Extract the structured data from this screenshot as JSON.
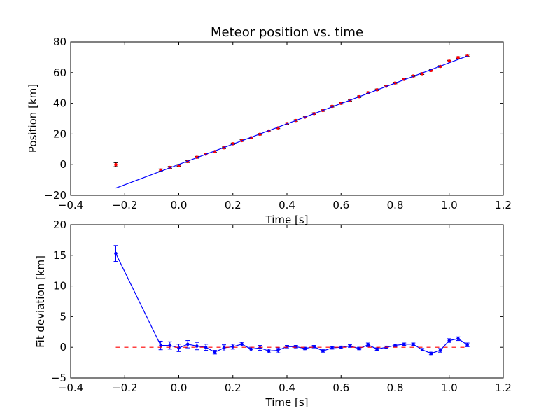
{
  "chart_data": [
    {
      "type": "scatter",
      "title": "Meteor position vs. time",
      "xlabel": "Time [s]",
      "ylabel": "Position [km]",
      "xlim": [
        -0.4,
        1.2
      ],
      "ylim": [
        -20,
        80
      ],
      "xticks": [
        -0.4,
        -0.2,
        0.0,
        0.2,
        0.4,
        0.6,
        0.8,
        1.0,
        1.2
      ],
      "xtick_labels": [
        "−0.4",
        "−0.2",
        "0.0",
        "0.2",
        "0.4",
        "0.6",
        "0.8",
        "1.0",
        "1.2"
      ],
      "yticks": [
        -20,
        0,
        20,
        40,
        60,
        80
      ],
      "ytick_labels": [
        "−20",
        "0",
        "20",
        "40",
        "60",
        "80"
      ],
      "grid": false,
      "series": [
        {
          "kind": "points_with_errorbars",
          "color": "#ff0000",
          "x": [
            -0.233,
            -0.067,
            -0.033,
            0.0,
            0.033,
            0.067,
            0.1,
            0.133,
            0.167,
            0.2,
            0.233,
            0.267,
            0.3,
            0.333,
            0.367,
            0.4,
            0.433,
            0.467,
            0.5,
            0.533,
            0.567,
            0.6,
            0.633,
            0.667,
            0.7,
            0.733,
            0.767,
            0.8,
            0.833,
            0.867,
            0.9,
            0.933,
            0.967,
            1.0,
            1.033,
            1.067
          ],
          "y": [
            0.0,
            -3.5,
            -1.8,
            -0.5,
            2.0,
            4.8,
            6.8,
            8.5,
            11.0,
            13.6,
            15.7,
            17.6,
            19.8,
            22.0,
            24.0,
            26.8,
            28.8,
            31.0,
            33.3,
            35.3,
            38.0,
            40.0,
            42.0,
            44.3,
            46.9,
            48.8,
            51.1,
            53.2,
            55.6,
            57.8,
            59.3,
            61.4,
            64.0,
            67.5,
            69.8,
            71.2
          ],
          "yerr": [
            1.3,
            0.7,
            0.6,
            0.6,
            0.6,
            0.6,
            0.5,
            0.5,
            0.5,
            0.5,
            0.5,
            0.5,
            0.5,
            0.5,
            0.5,
            0.5,
            0.5,
            0.5,
            0.5,
            0.5,
            0.5,
            0.5,
            0.5,
            0.5,
            0.5,
            0.5,
            0.5,
            0.5,
            0.5,
            0.5,
            0.5,
            0.5,
            0.5,
            0.5,
            0.5,
            0.5
          ]
        },
        {
          "kind": "fit_line",
          "color": "#0000ff",
          "x": [
            -0.233,
            1.067
          ],
          "y": [
            -15.3,
            70.8
          ]
        }
      ]
    },
    {
      "type": "line",
      "title": "",
      "xlabel": "Time [s]",
      "ylabel": "Fit deviation [km]",
      "xlim": [
        -0.4,
        1.2
      ],
      "ylim": [
        -5,
        20
      ],
      "xticks": [
        -0.4,
        -0.2,
        0.0,
        0.2,
        0.4,
        0.6,
        0.8,
        1.0,
        1.2
      ],
      "xtick_labels": [
        "−0.4",
        "−0.2",
        "0.0",
        "0.2",
        "0.4",
        "0.6",
        "0.8",
        "1.0",
        "1.2"
      ],
      "yticks": [
        -5,
        0,
        5,
        10,
        15,
        20
      ],
      "ytick_labels": [
        "−5",
        "0",
        "5",
        "10",
        "15",
        "20"
      ],
      "grid": false,
      "series": [
        {
          "kind": "line_with_errorbars",
          "color": "#0000ff",
          "x": [
            -0.233,
            -0.067,
            -0.033,
            0.0,
            0.033,
            0.067,
            0.1,
            0.133,
            0.167,
            0.2,
            0.233,
            0.267,
            0.3,
            0.333,
            0.367,
            0.4,
            0.433,
            0.467,
            0.5,
            0.533,
            0.567,
            0.6,
            0.633,
            0.667,
            0.7,
            0.733,
            0.767,
            0.8,
            0.833,
            0.867,
            0.9,
            0.933,
            0.967,
            1.0,
            1.033,
            1.067
          ],
          "y": [
            15.3,
            0.3,
            0.3,
            -0.1,
            0.5,
            0.2,
            0.0,
            -0.8,
            -0.1,
            0.1,
            0.5,
            -0.3,
            -0.1,
            -0.6,
            -0.5,
            0.1,
            0.1,
            -0.2,
            0.1,
            -0.6,
            -0.1,
            0.0,
            0.2,
            -0.2,
            0.4,
            -0.3,
            0.0,
            0.3,
            0.5,
            0.5,
            -0.4,
            -1.0,
            -0.5,
            1.1,
            1.4,
            0.4
          ],
          "yerr": [
            1.3,
            0.7,
            0.6,
            0.6,
            0.6,
            0.6,
            0.5,
            0.3,
            0.5,
            0.4,
            0.3,
            0.3,
            0.4,
            0.3,
            0.4,
            0.2,
            0.2,
            0.2,
            0.2,
            0.2,
            0.2,
            0.2,
            0.2,
            0.2,
            0.3,
            0.2,
            0.2,
            0.2,
            0.2,
            0.2,
            0.2,
            0.2,
            0.3,
            0.3,
            0.3,
            0.3
          ]
        },
        {
          "kind": "zero_reference_dashed",
          "color": "#ff0000",
          "x": [
            -0.233,
            1.067
          ],
          "y": [
            0,
            0
          ]
        }
      ]
    }
  ]
}
